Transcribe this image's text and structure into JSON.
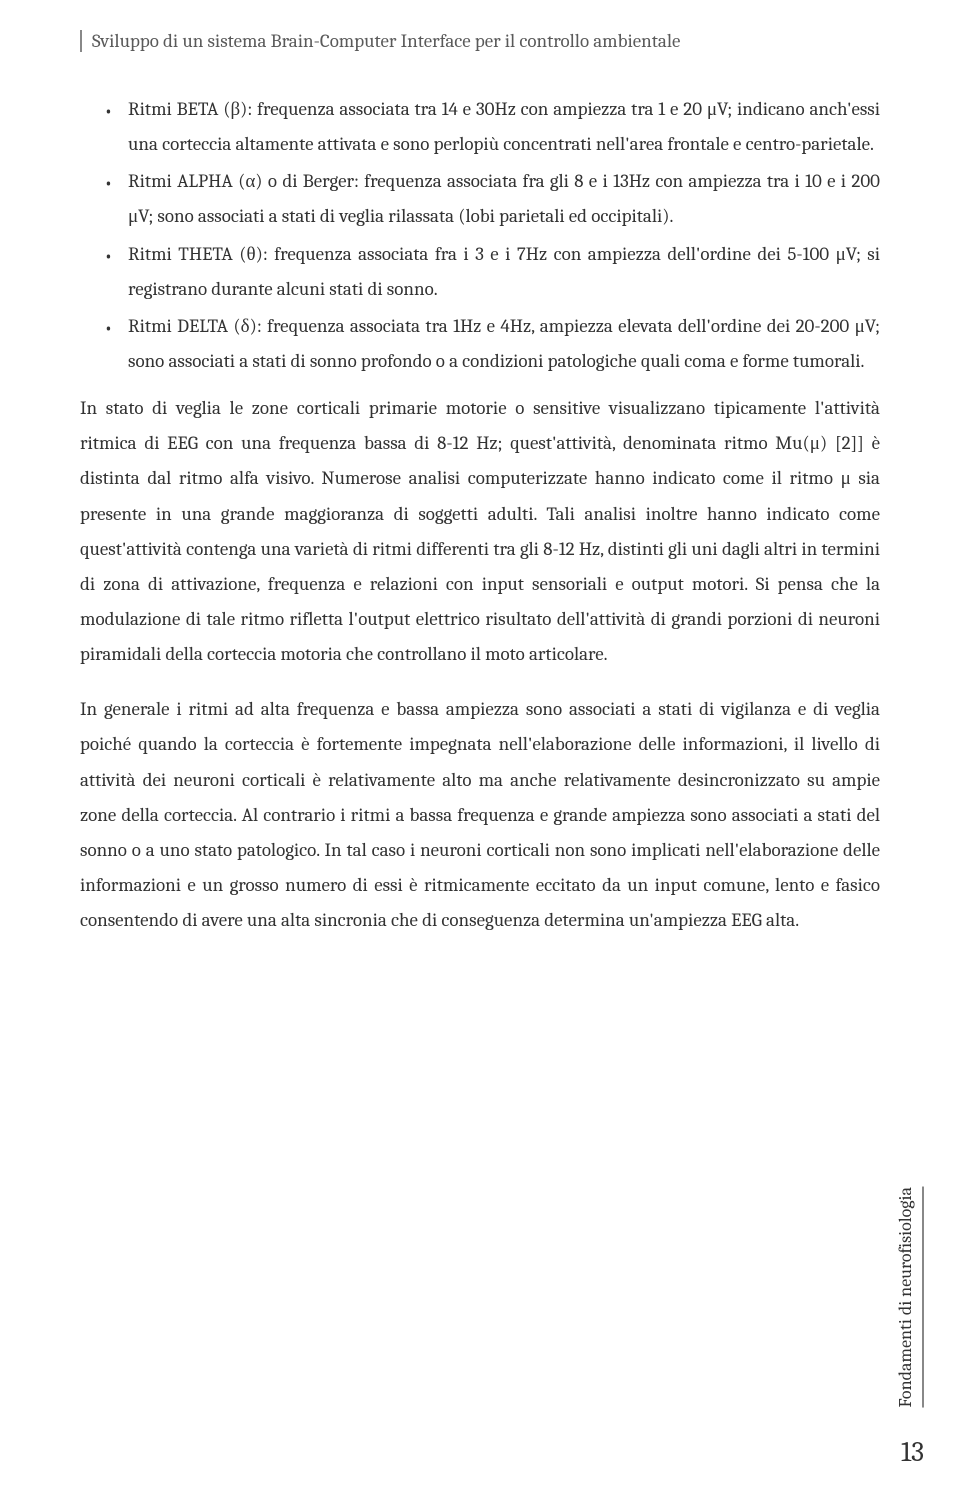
{
  "header": {
    "title": "Sviluppo di un sistema Brain-Computer Interface per il controllo ambientale"
  },
  "bullets": [
    "Ritmi BETA (β): frequenza associata tra 14 e 30Hz con ampiezza tra 1 e 20 μV; indicano anch'essi una corteccia altamente attivata e sono perlopiù concentrati nell'area frontale e centro-parietale.",
    "Ritmi ALPHA (α) o di Berger: frequenza associata fra gli 8 e i 13Hz con ampiezza tra i 10 e i 200 μV; sono associati a stati di veglia rilassata (lobi parietali ed occipitali).",
    "Ritmi THETA (θ): frequenza associata fra i 3 e i 7Hz con ampiezza dell'ordine dei 5-100 μV; si registrano durante alcuni stati di sonno.",
    "Ritmi DELTA (δ): frequenza associata tra 1Hz e 4Hz, ampiezza elevata dell'ordine dei 20-200 μV; sono associati a stati di sonno profondo o a condizioni patologiche quali coma e forme tumorali."
  ],
  "paragraphs": {
    "p1": "In stato di veglia le zone corticali primarie motorie o sensitive visualizzano tipicamente l'attività ritmica di EEG con una frequenza bassa di 8-12 Hz; quest'attività, denominata ritmo Mu(μ) [2]] è distinta dal ritmo alfa visivo. Numerose analisi computerizzate hanno indicato come il ritmo μ sia presente in una grande maggioranza di soggetti adulti. Tali analisi inoltre hanno indicato come quest'attività contenga una varietà di ritmi differenti tra gli 8-12 Hz, distinti gli uni dagli altri in termini di zona di attivazione, frequenza e relazioni con input sensoriali e output motori. Si pensa che la modulazione di tale ritmo rifletta l'output elettrico risultato dell'attività di grandi porzioni di neuroni piramidali della corteccia motoria che controllano il moto articolare.",
    "p2": "In generale i ritmi ad alta frequenza e bassa ampiezza sono associati a stati di vigilanza e di veglia poiché quando la corteccia è fortemente impegnata nell'elaborazione delle informazioni, il livello di attività dei neuroni corticali è relativamente alto ma anche relativamente desincronizzato su ampie zone della corteccia. Al contrario i ritmi a bassa frequenza e grande ampiezza sono associati a stati del sonno o a uno stato patologico. In tal caso i neuroni corticali non sono implicati nell'elaborazione delle informazioni e un grosso numero di essi è ritmicamente eccitato da un input comune, lento e fasico consentendo di avere una alta sincronia che di conseguenza determina un'ampiezza EEG alta."
  },
  "sideLabel": "Fondamenti di neurofisiologia",
  "pageNumber": "13"
}
